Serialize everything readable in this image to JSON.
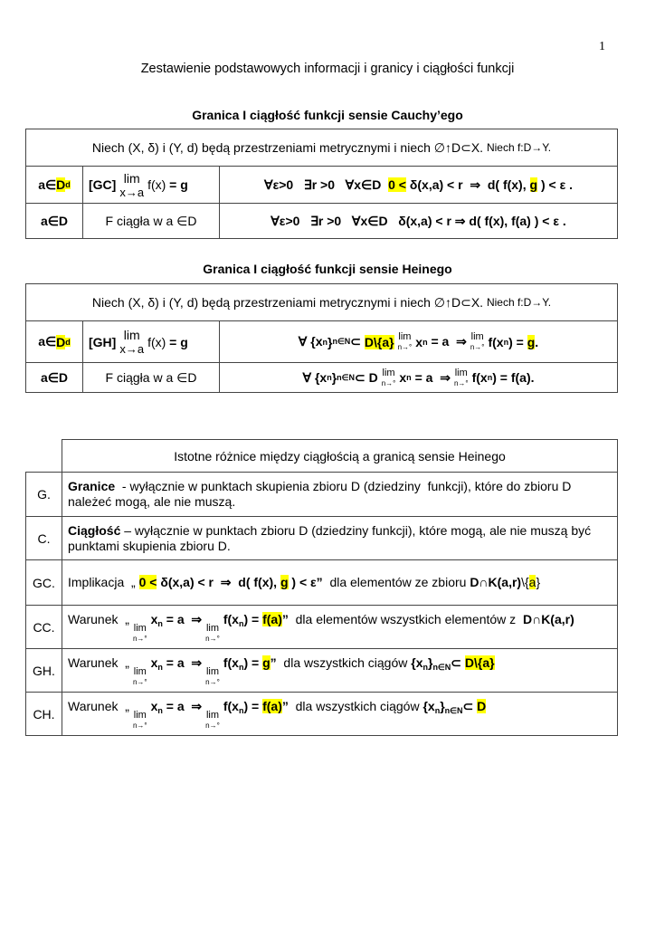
{
  "page_number": "1",
  "title": "Zestawienie podstawowych informacji i granicy i ciągłości funkcji",
  "section1": {
    "heading": "Granica I ciągłość funkcji sensie Cauchy’ego",
    "intro": [
      {
        "t": "Niech (X, δ) i (Y, d) będą przestrzeniami metrycznymi i niech ∅↑D⊂X. "
      },
      {
        "t": "Niech f:D→Y.",
        "s": "small"
      }
    ],
    "row1": {
      "c1": [
        {
          "t": "a∈",
          "s": "b"
        },
        {
          "t": "D",
          "s": "b hl"
        },
        {
          "t": "d",
          "s": "b hl sup"
        }
      ],
      "c2": [
        {
          "t": "[GC]",
          "s": "b"
        },
        {
          "lim": "lim",
          "under": "x→a",
          "big": true
        },
        {
          "t": "f(x)"
        },
        {
          "t": " = g",
          "s": "b"
        }
      ],
      "c3": [
        {
          "t": "∀ε>0   ∃r >0   ∀x∈D  ",
          "s": "b"
        },
        {
          "t": "0 <",
          "s": "b hl"
        },
        {
          "t": " δ(x,a) < r  ⇒  d( f(x), ",
          "s": "b"
        },
        {
          "t": "g",
          "s": "b hl"
        },
        {
          "t": " ) < ε .",
          "s": "b"
        }
      ]
    },
    "row2": {
      "c1": [
        {
          "t": "a∈D",
          "s": "b"
        }
      ],
      "c2": [
        {
          "t": "F ciągła w a ∈D"
        }
      ],
      "c3": [
        {
          "t": "∀ε>0   ∃r >0   ∀x∈D   δ(x,a) < r ⇒ d( f(x), f(a) ) < ε .",
          "s": "b"
        }
      ]
    }
  },
  "section2": {
    "heading": "Granica I ciągłość funkcji sensie Heinego",
    "intro": [
      {
        "t": "Niech (X, δ) i (Y, d) będą przestrzeniami metrycznymi i niech ∅↑D⊂X. "
      },
      {
        "t": "Niech f:D→Y.",
        "s": "small"
      }
    ],
    "row1": {
      "c1": [
        {
          "t": "a∈",
          "s": "b"
        },
        {
          "t": "D",
          "s": "b hl"
        },
        {
          "t": "d",
          "s": "b hl sup"
        }
      ],
      "c2": [
        {
          "t": "[GH]",
          "s": "b"
        },
        {
          "lim": "lim",
          "under": "x→a",
          "big": true
        },
        {
          "t": "f(x)"
        },
        {
          "t": " = g",
          "s": "b"
        }
      ],
      "c3": [
        {
          "t": "∀ {x",
          "s": "b"
        },
        {
          "t": "n",
          "s": "b sub"
        },
        {
          "t": "}",
          "s": "b"
        },
        {
          "t": "n∈N",
          "s": "b sub"
        },
        {
          "t": "⊂ ",
          "s": "b"
        },
        {
          "t": "D\\{a}",
          "s": "b hl"
        },
        {
          "lim": "lim",
          "under": "n→°"
        },
        {
          "t": "x",
          "s": "b"
        },
        {
          "t": "n",
          "s": "b sub"
        },
        {
          "t": " = a  ⇒",
          "s": "b"
        },
        {
          "lim": "lim",
          "under": "n→°"
        },
        {
          "t": "f(x",
          "s": "b"
        },
        {
          "t": "n",
          "s": "b sub"
        },
        {
          "t": ") = ",
          "s": "b"
        },
        {
          "t": "g",
          "s": "b hl"
        },
        {
          "t": ".",
          "s": "b"
        }
      ]
    },
    "row2": {
      "c1": [
        {
          "t": "a∈D",
          "s": "b"
        }
      ],
      "c2": [
        {
          "t": "F ciągła w a ∈D"
        }
      ],
      "c3": [
        {
          "t": "∀ {x",
          "s": "b"
        },
        {
          "t": "n",
          "s": "b sub"
        },
        {
          "t": "}",
          "s": "b"
        },
        {
          "t": "n∈N",
          "s": "b sub"
        },
        {
          "t": "⊂ D",
          "s": "b"
        },
        {
          "lim": "lim",
          "under": "n→°"
        },
        {
          "t": "x",
          "s": "b"
        },
        {
          "t": "n",
          "s": "b sub"
        },
        {
          "t": " = a  ⇒",
          "s": "b"
        },
        {
          "lim": "lim",
          "under": "n→°"
        },
        {
          "t": "f(x",
          "s": "b"
        },
        {
          "t": "n",
          "s": "b sub"
        },
        {
          "t": ") = f(a).",
          "s": "b"
        }
      ]
    }
  },
  "section3": {
    "header": "Istotne różnice między ciągłością a granicą sensie Heinego",
    "rows": [
      {
        "label": "G.",
        "content": [
          {
            "t": "Granice",
            "s": "b"
          },
          {
            "t": "  - wyłącznie w punktach skupienia zbioru D (dziedziny  funkcji), które do zbioru D należeć mogą, ale nie muszą."
          }
        ]
      },
      {
        "label": "C.",
        "content": [
          {
            "t": "Ciągłość",
            "s": "b"
          },
          {
            "t": " – wyłącznie w punktach zbioru D (dziedziny funkcji), które mogą, ale nie muszą być punktami skupienia zbioru D."
          }
        ]
      },
      {
        "label": "GC.",
        "content": [
          {
            "t": "Implikacja  „ "
          },
          {
            "t": "0 <",
            "s": "b hl"
          },
          {
            "t": " δ(x,a) < r  ⇒  d( f(x), ",
            "s": "b"
          },
          {
            "t": "g",
            "s": "b hl"
          },
          {
            "t": " ) < ε”",
            "s": "b"
          },
          {
            "t": "  dla elementów ze zbioru "
          },
          {
            "t": "D∩K(a,r)",
            "s": "b"
          },
          {
            "t": "\\{"
          },
          {
            "t": "a",
            "s": "hl"
          },
          {
            "t": "}"
          }
        ]
      },
      {
        "label": "CC.",
        "content": [
          {
            "t": "Warunek  „"
          },
          {
            "lim": "lim",
            "under": "n→°"
          },
          {
            "t": "x",
            "s": "b"
          },
          {
            "t": "n",
            "s": "b sub"
          },
          {
            "t": " = a  ⇒",
            "s": "b"
          },
          {
            "lim": "lim",
            "under": "n→°"
          },
          {
            "t": "f(x",
            "s": "b"
          },
          {
            "t": "n",
            "s": "b sub"
          },
          {
            "t": ") = ",
            "s": "b"
          },
          {
            "t": "f(a)",
            "s": "b hl"
          },
          {
            "t": "”",
            "s": "b"
          },
          {
            "t": "  dla elementów wszystkich elementów z  "
          },
          {
            "t": "D∩K(a,r)",
            "s": "b"
          }
        ]
      },
      {
        "label": "GH.",
        "content": [
          {
            "t": "Warunek  „"
          },
          {
            "lim": "lim",
            "under": "n→°"
          },
          {
            "t": "x",
            "s": "b"
          },
          {
            "t": "n",
            "s": "b sub"
          },
          {
            "t": " = a  ⇒",
            "s": "b"
          },
          {
            "lim": "lim",
            "under": "n→°"
          },
          {
            "t": "f(x",
            "s": "b"
          },
          {
            "t": "n",
            "s": "b sub"
          },
          {
            "t": ") = ",
            "s": "b"
          },
          {
            "t": "g",
            "s": "b hl"
          },
          {
            "t": "”",
            "s": "b"
          },
          {
            "t": "  dla wszystkich ciągów "
          },
          {
            "t": "{x",
            "s": "b"
          },
          {
            "t": "n",
            "s": "b sub"
          },
          {
            "t": "}",
            "s": "b"
          },
          {
            "t": "n∈N",
            "s": "b sub"
          },
          {
            "t": "⊂ ",
            "s": "b"
          },
          {
            "t": "D\\{a}",
            "s": "b hl"
          }
        ]
      },
      {
        "label": "CH.",
        "content": [
          {
            "t": "Warunek  „"
          },
          {
            "lim": "lim",
            "under": "n→°"
          },
          {
            "t": "x",
            "s": "b"
          },
          {
            "t": "n",
            "s": "b sub"
          },
          {
            "t": " = a  ⇒",
            "s": "b"
          },
          {
            "lim": "lim",
            "under": "n→°"
          },
          {
            "t": "f(x",
            "s": "b"
          },
          {
            "t": "n",
            "s": "b sub"
          },
          {
            "t": ") = ",
            "s": "b"
          },
          {
            "t": "f(a)",
            "s": "b hl"
          },
          {
            "t": "”",
            "s": "b"
          },
          {
            "t": "  dla wszystkich ciągów "
          },
          {
            "t": "{x",
            "s": "b"
          },
          {
            "t": "n",
            "s": "b sub"
          },
          {
            "t": "}",
            "s": "b"
          },
          {
            "t": "n∈N",
            "s": "b sub"
          },
          {
            "t": "⊂ ",
            "s": "b"
          },
          {
            "t": "D",
            "s": "b hl"
          }
        ]
      }
    ]
  },
  "colors": {
    "highlight": "#ffff00",
    "border": "#444444"
  }
}
